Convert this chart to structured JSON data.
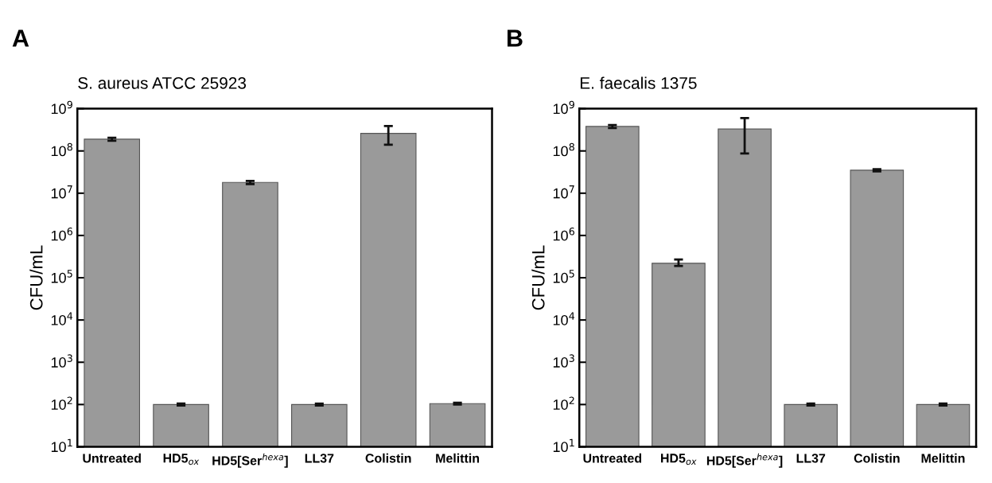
{
  "chart_data": [
    {
      "type": "bar",
      "title": "S. aureus ATCC 25923",
      "ylabel": "CFU/mL",
      "annotations": [
        "A"
      ],
      "categories": [
        "Untreated",
        "HD5$_{ox}$",
        "HD5[Ser$^{hexa}$]",
        "LL37",
        "Colistin",
        "Melittin"
      ],
      "values": [
        190000000,
        100,
        18000000,
        100,
        260000000,
        105
      ],
      "errors": [
        [
          175000000,
          205000000
        ],
        [
          95,
          105
        ],
        [
          16500000,
          19500000
        ],
        [
          95,
          105
        ],
        [
          140000000,
          390000000
        ],
        [
          100,
          110
        ]
      ],
      "color": "#9a9a9a",
      "log": true,
      "ylim": [
        10,
        1000000000
      ],
      "yticks": [
        {
          "value": 10,
          "label": "10$^{1}$"
        },
        {
          "value": 100,
          "label": "10$^{2}$"
        },
        {
          "value": 1000,
          "label": "10$^{3}$"
        },
        {
          "value": 10000,
          "label": "10$^{4}$"
        },
        {
          "value": 100000,
          "label": "10$^{5}$"
        },
        {
          "value": 1000000,
          "label": "10$^{6}$"
        },
        {
          "value": 10000000,
          "label": "10$^{7}$"
        },
        {
          "value": 100000000,
          "label": "10$^{8}$"
        },
        {
          "value": 1000000000,
          "label": "10$^{9}$"
        }
      ],
      "grid": false
    },
    {
      "type": "bar",
      "title": "E. faecalis 1375",
      "ylabel": "CFU/mL",
      "annotations": [
        "B"
      ],
      "categories": [
        "Untreated",
        "HD5$_{ox}$",
        "HD5[Ser$^{hexa}$]",
        "LL37",
        "Colistin",
        "Melittin"
      ],
      "values": [
        380000000,
        220000,
        330000000,
        100,
        35000000,
        100
      ],
      "errors": [
        [
          350000000,
          410000000
        ],
        [
          190000,
          270000
        ],
        [
          87000000,
          600000000
        ],
        [
          95,
          105
        ],
        [
          33000000,
          37000000
        ],
        [
          95,
          105
        ]
      ],
      "color": "#9a9a9a",
      "log": true,
      "ylim": [
        10,
        1000000000
      ],
      "yticks": [
        {
          "value": 10,
          "label": "10$^{1}$"
        },
        {
          "value": 100,
          "label": "10$^{2}$"
        },
        {
          "value": 1000,
          "label": "10$^{3}$"
        },
        {
          "value": 10000,
          "label": "10$^{4}$"
        },
        {
          "value": 100000,
          "label": "10$^{5}$"
        },
        {
          "value": 1000000,
          "label": "10$^{6}$"
        },
        {
          "value": 10000000,
          "label": "10$^{7}$"
        },
        {
          "value": 100000000,
          "label": "10$^{8}$"
        },
        {
          "value": 1000000000,
          "label": "10$^{9}$"
        }
      ],
      "grid": false
    }
  ]
}
